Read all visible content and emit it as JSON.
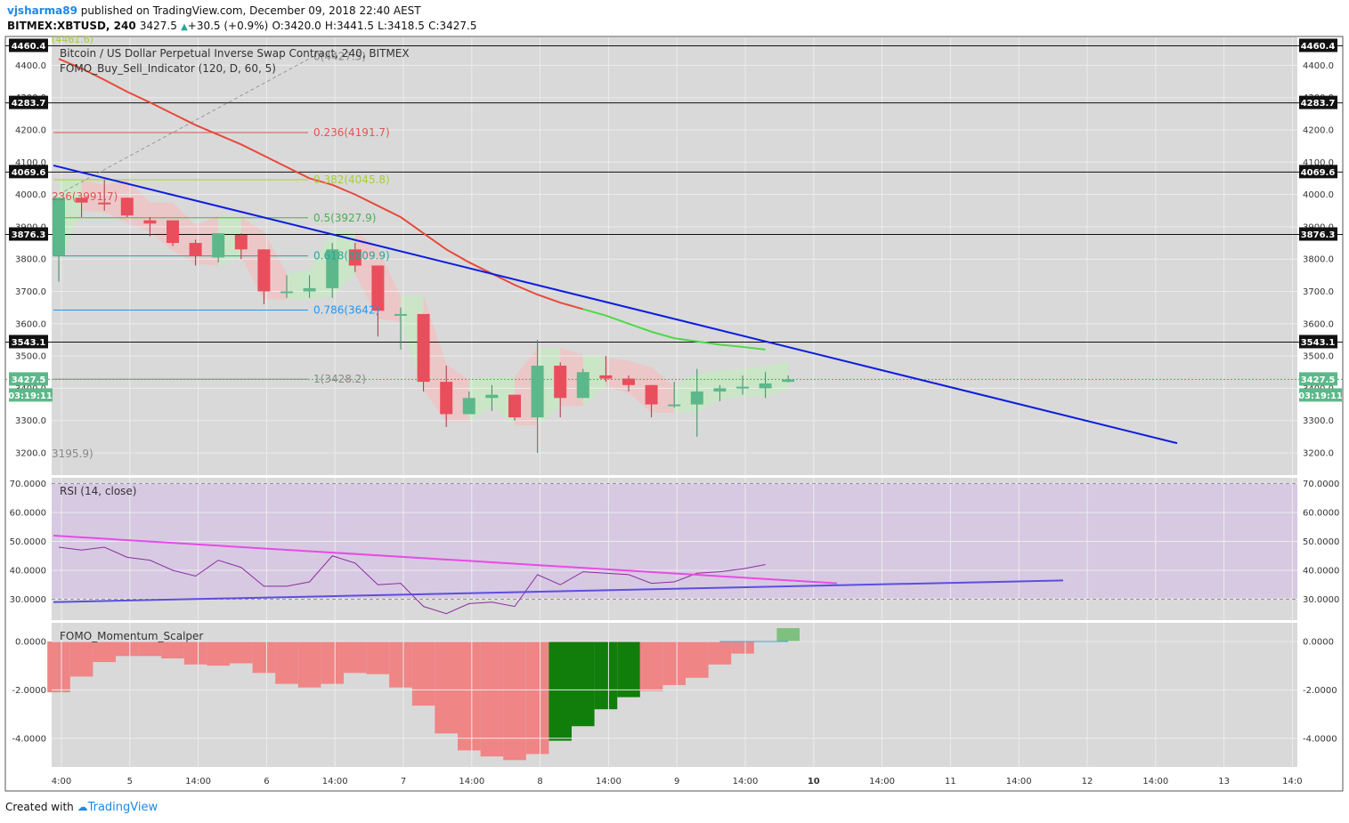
{
  "header": {
    "user": "vjsharma89",
    "published": "published on TradingView.com, December 09, 2018 22:40 AEST",
    "symbol": "BITMEX:XBTUSD, 240",
    "last": "3427.5",
    "change": "+30.5 (+0.9%)",
    "open": "O:3420.0",
    "high": "H:3441.5",
    "low": "L:3418.5",
    "close": "C:3427.5"
  },
  "legend": {
    "title": "Bitcoin / US Dollar Perpetual Inverse Swap Contract, 240, BITMEX",
    "indicator": "FOMO_Buy_Sell_Indicator (120, D, 60, 5)",
    "rsi": "RSI (14, close)",
    "momentum": "FOMO_Momentum_Scalper"
  },
  "footer": {
    "created": "Created with",
    "brand": "TradingView"
  },
  "colors": {
    "up": "#5cb88a",
    "down": "#e94e5c",
    "trend": "#0c1de0",
    "ma": "#e8493b",
    "ma_tail": "#4fd849",
    "rsi_band": "#d6c6e3",
    "rsi_line": "#8c2ea0",
    "rsi_trend_down": "#e64ce6",
    "rsi_trend_up": "#5b4fde",
    "mom_neg": "#ef8585",
    "mom_up": "#117d0b",
    "mom_last": "#7fbf7f",
    "bg": "#d9d9d9"
  },
  "chart_data": [
    {
      "type": "candlestick",
      "title": "Bitcoin / US Dollar Perpetual Inverse Swap Contract, 240, BITMEX",
      "x_ticks": [
        "4:00",
        "5",
        "14:00",
        "6",
        "14:00",
        "7",
        "14:00",
        "8",
        "14:00",
        "9",
        "14:00",
        "10",
        "14:00",
        "11",
        "14:00",
        "12",
        "14:00",
        "13",
        "14:0"
      ],
      "y_ticks": [
        "3200.0",
        "3300.0",
        "3400.0",
        "3500.0",
        "3600.0",
        "3700.0",
        "3800.0",
        "3900.0",
        "4000.0",
        "4100.0",
        "4200.0",
        "4300.0",
        "4400.0"
      ],
      "ylim": [
        3140,
        4490
      ],
      "ohlc": [
        [
          3810,
          3990,
          3730,
          3990
        ],
        [
          3990,
          3990,
          3930,
          3975
        ],
        [
          3975,
          4045,
          3950,
          3970
        ],
        [
          3990,
          3990,
          3930,
          3935
        ],
        [
          3920,
          3930,
          3870,
          3910
        ],
        [
          3920,
          3920,
          3840,
          3850
        ],
        [
          3850,
          3860,
          3780,
          3810
        ],
        [
          3805,
          3880,
          3790,
          3880
        ],
        [
          3875,
          3880,
          3800,
          3830
        ],
        [
          3830,
          3830,
          3660,
          3700
        ],
        [
          3700,
          3750,
          3680,
          3700
        ],
        [
          3700,
          3750,
          3680,
          3710
        ],
        [
          3710,
          3850,
          3680,
          3830
        ],
        [
          3830,
          3850,
          3760,
          3780
        ],
        [
          3780,
          3780,
          3560,
          3640
        ],
        [
          3630,
          3650,
          3520,
          3630
        ],
        [
          3630,
          3630,
          3390,
          3420
        ],
        [
          3420,
          3470,
          3280,
          3320
        ],
        [
          3320,
          3390,
          3320,
          3370
        ],
        [
          3370,
          3410,
          3330,
          3380
        ],
        [
          3380,
          3380,
          3300,
          3310
        ],
        [
          3310,
          3550,
          3200,
          3470
        ],
        [
          3470,
          3480,
          3310,
          3370
        ],
        [
          3370,
          3460,
          3370,
          3450
        ],
        [
          3440,
          3500,
          3420,
          3430
        ],
        [
          3430,
          3440,
          3390,
          3410
        ],
        [
          3410,
          3410,
          3310,
          3350
        ],
        [
          3350,
          3420,
          3340,
          3350
        ],
        [
          3350,
          3460,
          3250,
          3390
        ],
        [
          3390,
          3410,
          3360,
          3400
        ],
        [
          3400,
          3440,
          3380,
          3405
        ],
        [
          3400,
          3450,
          3370,
          3415
        ],
        [
          3420,
          3440,
          3418,
          3427.5
        ]
      ],
      "price_levels": [
        "4460.4",
        "4283.7",
        "4069.6",
        "3876.3",
        "3543.1",
        "3427.5"
      ],
      "countdown": "03:19:11",
      "fib_labels": [
        "0(4427.5)",
        "0.236(4191.7)",
        "0.382(4045.8)",
        "0.5(3927.9)",
        "0.618(3809.9)",
        "0.786(3642)",
        "1(3428.2)"
      ],
      "left_labels": [
        "(4461.6)",
        "236(3991.7)",
        "3195.9)"
      ]
    },
    {
      "type": "line",
      "title": "RSI (14, close)",
      "y_ticks": [
        "30.0000",
        "40.0000",
        "50.0000",
        "60.0000",
        "70.0000"
      ],
      "ylim": [
        22,
        72
      ],
      "values": [
        48,
        47,
        48,
        44.5,
        43.5,
        40,
        38,
        43.5,
        41,
        34.5,
        34.5,
        36,
        45,
        42.5,
        35,
        35.5,
        27.5,
        25,
        28.5,
        29,
        27.5,
        38.5,
        35,
        39.5,
        39,
        38.5,
        35.5,
        36,
        39,
        39.5,
        40.5,
        42
      ]
    },
    {
      "type": "bar",
      "title": "FOMO_Momentum_Scalper",
      "y_ticks": [
        "-4.0000",
        "-2.0000",
        "0.0000"
      ],
      "ylim": [
        -5.1,
        0.9
      ],
      "values": [
        -2.1,
        -1.45,
        -0.85,
        -0.6,
        -0.6,
        -0.7,
        -0.95,
        -1.0,
        -0.9,
        -1.3,
        -1.75,
        -1.9,
        -1.75,
        -1.3,
        -1.35,
        -1.9,
        -2.65,
        -3.8,
        -4.5,
        -4.75,
        -4.9,
        -4.65,
        -4.1,
        -3.5,
        -2.8,
        -2.3,
        -2.05,
        -1.8,
        -1.5,
        -0.95,
        -0.5,
        0.0,
        0.55
      ],
      "rising": [
        false,
        false,
        false,
        false,
        false,
        false,
        false,
        false,
        false,
        false,
        false,
        false,
        false,
        false,
        false,
        false,
        false,
        false,
        false,
        false,
        false,
        false,
        true,
        true,
        true,
        true,
        false,
        false,
        false,
        false,
        false,
        false,
        true
      ]
    }
  ]
}
